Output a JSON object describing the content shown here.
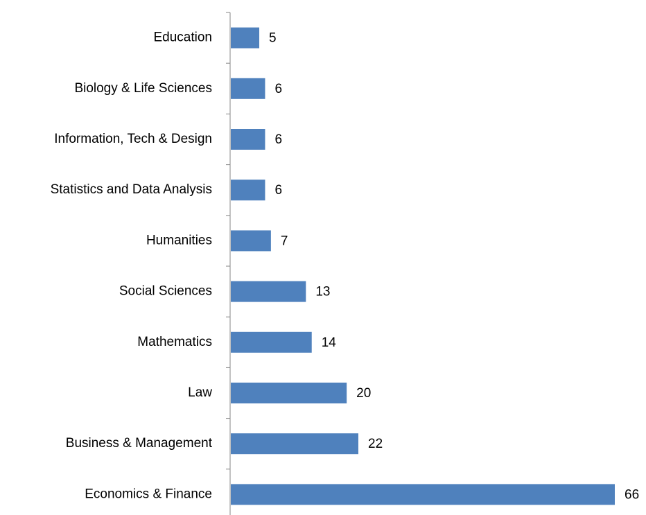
{
  "chart_data": {
    "type": "bar",
    "orientation": "horizontal",
    "categories": [
      "Education",
      "Biology & Life Sciences",
      "Information, Tech & Design",
      "Statistics and Data Analysis",
      "Humanities",
      "Social Sciences",
      "Mathematics",
      "Law",
      "Business & Management",
      "Economics & Finance"
    ],
    "values": [
      5,
      6,
      6,
      6,
      7,
      13,
      14,
      20,
      22,
      66
    ],
    "color": "#4f81bd"
  }
}
